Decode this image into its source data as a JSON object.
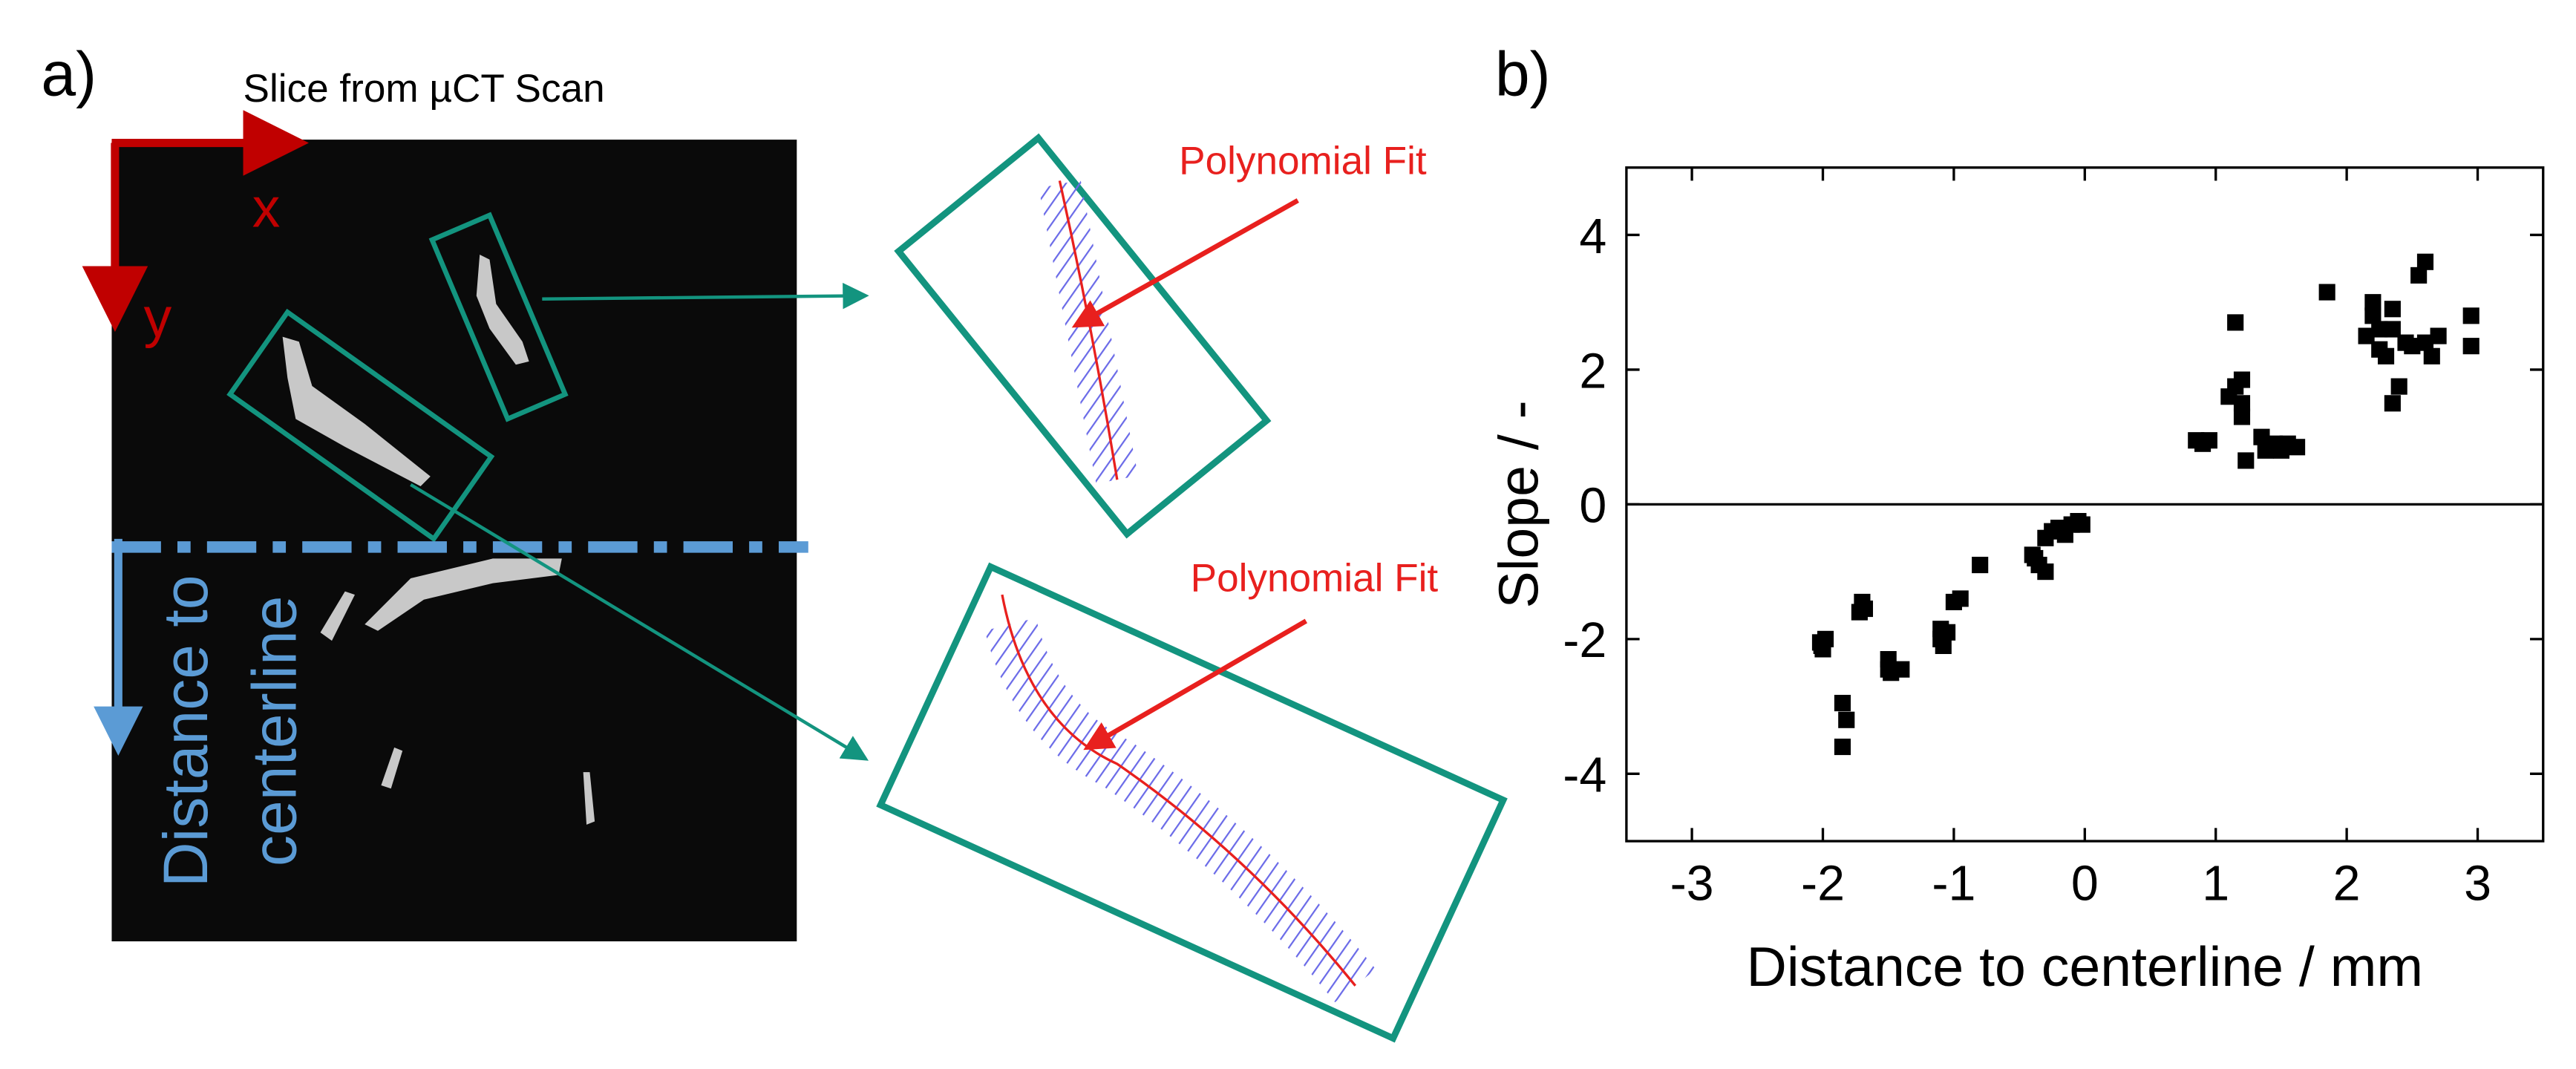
{
  "panel_a": {
    "label": "a)",
    "title": "Slice from µCT Scan",
    "x_axis": "x",
    "y_axis": "y",
    "centerline_label": [
      "Distance to",
      "centerline"
    ],
    "insets": [
      {
        "label": "Polynomial Fit"
      },
      {
        "label": "Polynomial Fit"
      }
    ]
  },
  "chart_data": {
    "type": "scatter",
    "panel_label": "b)",
    "x_label": "Distance to centerline / mm",
    "y_label": "Slope / -",
    "color": "#000000",
    "marker": "square",
    "hline": 0,
    "xlim": [
      -3.5,
      3.5
    ],
    "ylim": [
      -5,
      5
    ],
    "xticks": [
      -3,
      -2,
      -1,
      0,
      1,
      2,
      3
    ],
    "yticks": [
      -4,
      -2,
      0,
      2,
      4
    ],
    "x": [
      -2.02,
      -2.0,
      -1.98,
      -2.01,
      -1.85,
      -1.82,
      -1.85,
      -1.7,
      -1.68,
      -1.72,
      -1.5,
      -1.48,
      -1.4,
      -1.5,
      -1.1,
      -1.08,
      -1.1,
      -1.05,
      -1.0,
      -0.95,
      -0.8,
      -0.4,
      -0.35,
      -0.38,
      -0.3,
      -0.25,
      -0.2,
      -0.15,
      -0.1,
      -0.05,
      -0.02,
      -0.3,
      0.85,
      0.9,
      0.95,
      1.1,
      1.15,
      1.2,
      1.2,
      1.15,
      1.2,
      1.23,
      1.35,
      1.4,
      1.45,
      1.5,
      1.55,
      1.62,
      1.38,
      1.85,
      2.15,
      2.2,
      2.2,
      2.25,
      2.25,
      2.3,
      2.35,
      2.35,
      2.4,
      2.35,
      2.45,
      2.5,
      2.55,
      2.6,
      2.6,
      2.65,
      2.7,
      2.95,
      2.95
    ],
    "values": [
      -2.05,
      -2.15,
      -2.0,
      -2.1,
      -2.95,
      -3.2,
      -3.6,
      -1.45,
      -1.55,
      -1.6,
      -2.3,
      -2.5,
      -2.45,
      -2.45,
      -1.85,
      -2.1,
      -2.0,
      -1.9,
      -1.45,
      -1.4,
      -0.9,
      -0.75,
      -0.9,
      -0.8,
      -0.5,
      -0.4,
      -0.35,
      -0.45,
      -0.3,
      -0.25,
      -0.3,
      -1.0,
      0.95,
      0.9,
      0.95,
      1.6,
      1.75,
      1.5,
      1.85,
      2.7,
      1.3,
      0.65,
      1.0,
      0.85,
      0.9,
      0.8,
      0.9,
      0.85,
      0.8,
      3.15,
      2.5,
      2.8,
      3.0,
      2.3,
      2.6,
      2.2,
      2.6,
      1.5,
      1.75,
      2.9,
      2.4,
      2.35,
      3.4,
      3.6,
      2.4,
      2.2,
      2.5,
      2.8,
      2.35
    ]
  }
}
